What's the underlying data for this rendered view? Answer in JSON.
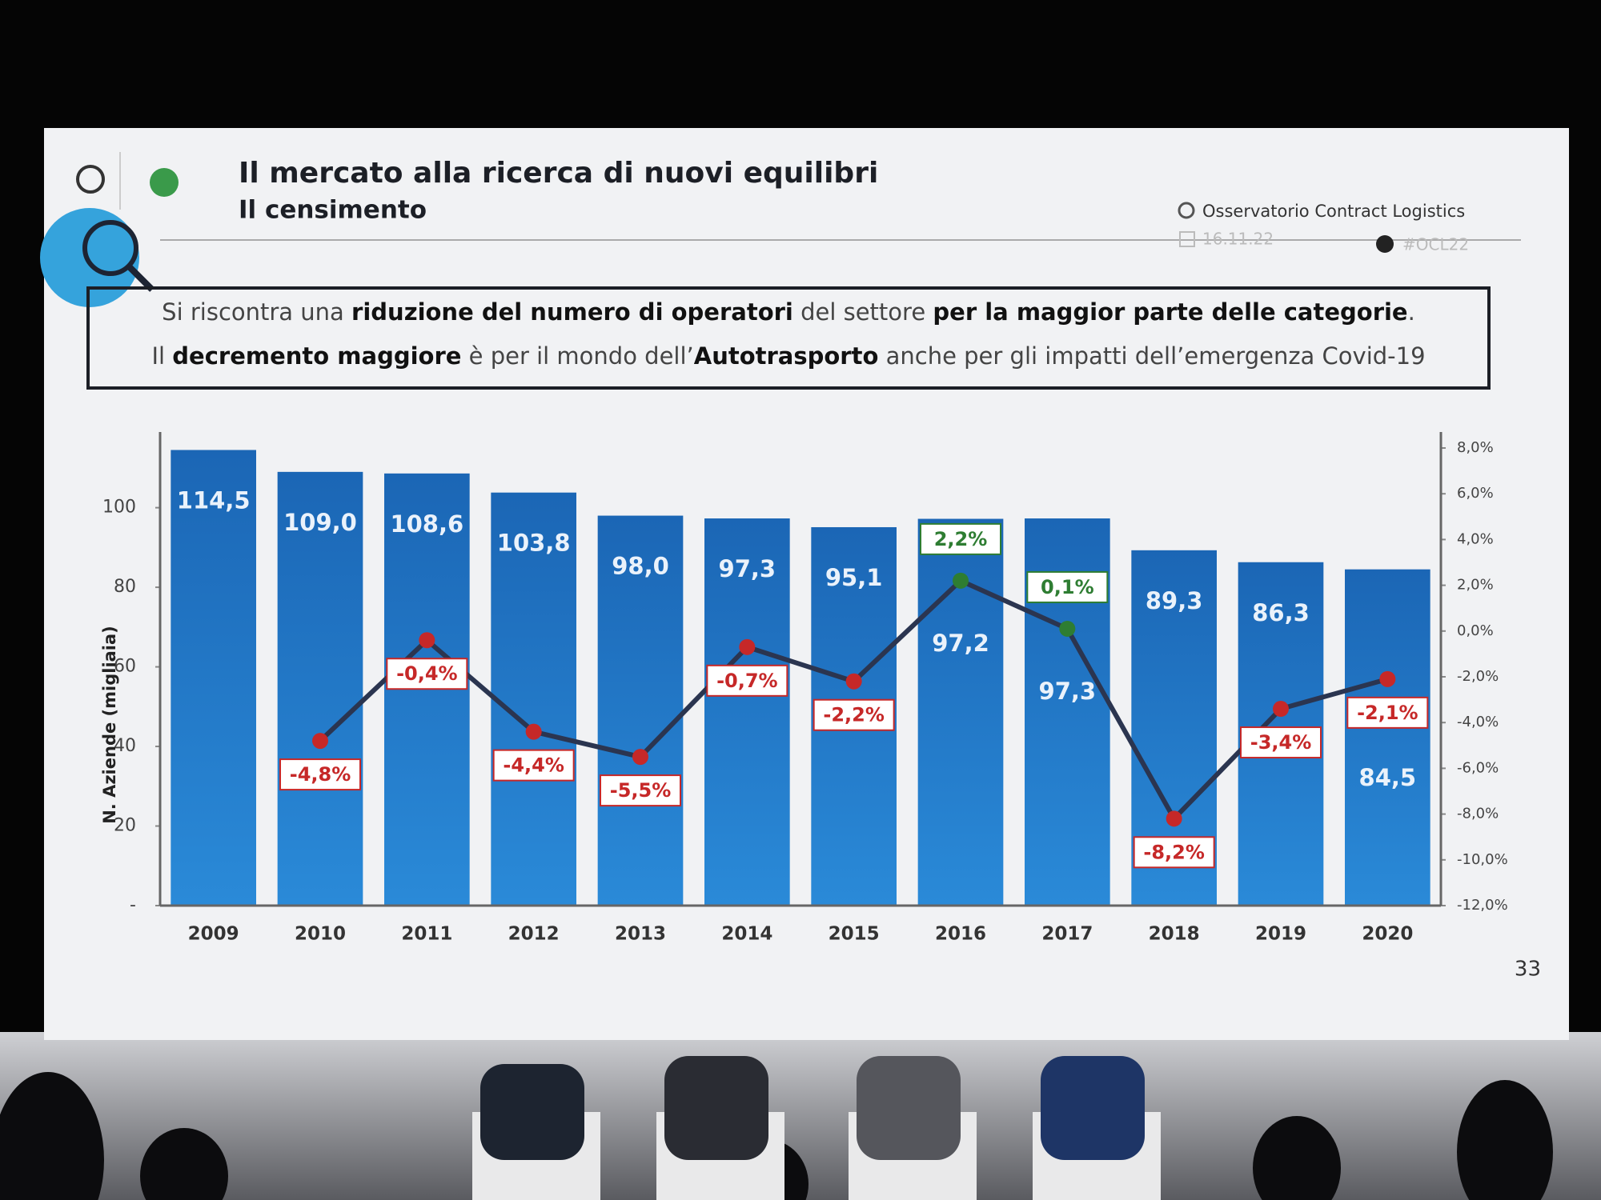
{
  "slide": {
    "title": "Il mercato alla ricerca di nuovi equilibri",
    "subtitle": "Il censimento",
    "source": "Osservatorio Contract Logistics",
    "date": "16.11.22",
    "hashtag": "#OCL22",
    "page": "33",
    "callout": {
      "lines": [
        [
          {
            "text": "Si riscontra una "
          },
          {
            "text": "riduzione del numero di operatori",
            "bold": true
          },
          {
            "text": " del settore "
          },
          {
            "text": "per la maggior parte delle categorie",
            "bold": true
          },
          {
            "text": "."
          }
        ],
        [
          {
            "text": "Il "
          },
          {
            "text": "decremento maggiore",
            "bold": true
          },
          {
            "text": " è per il mondo dell’"
          },
          {
            "text": "Autotrasporto",
            "bold": true
          },
          {
            "text": " anche per gli impatti dell’emergenza Covid-19"
          }
        ]
      ]
    }
  },
  "chart_data": {
    "type": "combo",
    "ylabel": "N. Aziende (migliaia)",
    "categories": [
      "2009",
      "2010",
      "2011",
      "2012",
      "2013",
      "2014",
      "2015",
      "2016",
      "2017",
      "2018",
      "2019",
      "2020"
    ],
    "bars": {
      "values": [
        114.5,
        109.0,
        108.6,
        103.8,
        98.0,
        97.3,
        95.1,
        97.2,
        97.3,
        89.3,
        86.3,
        84.5
      ],
      "value_labels": [
        "114,5",
        "109,0",
        "108,6",
        "103,8",
        "98,0",
        "97,3",
        "95,1",
        "97,2",
        "97,3",
        "89,3",
        "86,3",
        "84,5"
      ],
      "color": "#1f74c6"
    },
    "line": {
      "axis": "y2",
      "values": [
        null,
        -4.8,
        -0.4,
        -4.4,
        -5.5,
        -0.7,
        -2.2,
        2.2,
        0.1,
        -8.2,
        -3.4,
        -2.1
      ],
      "value_labels": [
        null,
        "-4,8%",
        "-0,4%",
        "-4,4%",
        "-5,5%",
        "-0,7%",
        "-2,2%",
        "2,2%",
        "0,1%",
        "-8,2%",
        "-3,4%",
        "-2,1%"
      ],
      "color": "#2b3550",
      "positive_color": "#2e7d32",
      "negative_color": "#c62828"
    },
    "ylim": [
      0,
      115
    ],
    "yticks": [
      {
        "value": 0,
        "label": "-"
      },
      20,
      40,
      60,
      80,
      100
    ],
    "y2lim": [
      -12,
      8
    ],
    "y2ticks": [
      {
        "value": -12,
        "label": "-12,0%"
      },
      {
        "value": -10,
        "label": "-10,0%"
      },
      {
        "value": -8,
        "label": "-8,0%"
      },
      {
        "value": -6,
        "label": "-6,0%"
      },
      {
        "value": -4,
        "label": "-4,0%"
      },
      {
        "value": -2,
        "label": "-2,0%"
      },
      {
        "value": 0,
        "label": "0,0%"
      },
      {
        "value": 2,
        "label": "2,0%"
      },
      {
        "value": 4,
        "label": "4,0%"
      },
      {
        "value": 6,
        "label": "6,0%"
      },
      {
        "value": 8,
        "label": "8,0%"
      }
    ]
  }
}
